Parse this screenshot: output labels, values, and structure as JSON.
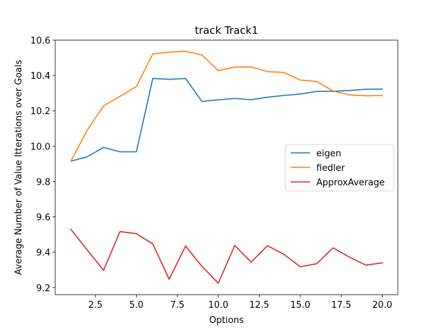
{
  "chart_data": {
    "type": "line",
    "title": "track  Track1",
    "xlabel": "Options",
    "ylabel": "Average Number of Value Itterations over Goals",
    "xlim": [
      0.05,
      20.95
    ],
    "ylim": [
      9.16,
      10.6
    ],
    "xticks": [
      2.5,
      5.0,
      7.5,
      10.0,
      12.5,
      15.0,
      17.5,
      20.0
    ],
    "xtick_labels": [
      "2.5",
      "5.0",
      "7.5",
      "10.0",
      "12.5",
      "15.0",
      "17.5",
      "20.0"
    ],
    "yticks": [
      9.2,
      9.4,
      9.6,
      9.8,
      10.0,
      10.2,
      10.4,
      10.6
    ],
    "ytick_labels": [
      "9.2",
      "9.4",
      "9.6",
      "9.8",
      "10.0",
      "10.2",
      "10.4",
      "10.6"
    ],
    "x": [
      1,
      2,
      3,
      4,
      5,
      6,
      7,
      8,
      9,
      10,
      11,
      12,
      13,
      14,
      15,
      16,
      17,
      18,
      19,
      20
    ],
    "series": [
      {
        "name": "eigen",
        "color": "#1f77b4",
        "values": [
          9.915,
          9.94,
          9.993,
          9.968,
          9.968,
          10.383,
          10.378,
          10.383,
          10.253,
          10.262,
          10.27,
          10.263,
          10.277,
          10.287,
          10.295,
          10.31,
          10.31,
          10.315,
          10.322,
          10.323
        ]
      },
      {
        "name": "fiedler",
        "color": "#ff7f0e",
        "values": [
          9.915,
          10.09,
          10.228,
          10.282,
          10.338,
          10.522,
          10.532,
          10.537,
          10.516,
          10.427,
          10.448,
          10.448,
          10.422,
          10.417,
          10.374,
          10.366,
          10.312,
          10.29,
          10.285,
          10.287
        ]
      },
      {
        "name": "ApproxAverage",
        "color": "#d62728",
        "values": [
          9.53,
          9.413,
          9.298,
          9.517,
          9.505,
          9.447,
          9.247,
          9.435,
          9.32,
          9.225,
          9.438,
          9.344,
          9.437,
          9.388,
          9.318,
          9.335,
          9.425,
          9.372,
          9.327,
          9.34
        ]
      }
    ],
    "legend": "center-right",
    "grid": false
  }
}
